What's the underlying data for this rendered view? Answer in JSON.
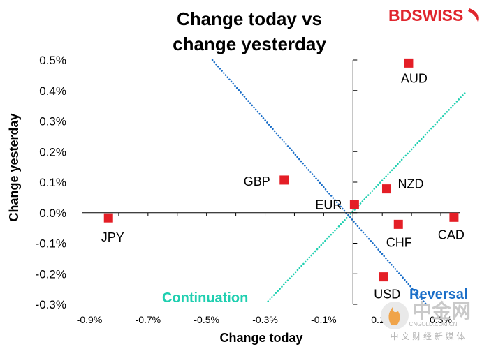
{
  "chart_data": {
    "type": "scatter",
    "title_lines": [
      "Change today vs",
      "change yesterday"
    ],
    "xlabel": "Change today",
    "ylabel": "Change yesterday",
    "xlim": [
      -0.9,
      0.35
    ],
    "ylim": [
      -0.3,
      0.5
    ],
    "x_ticks": [
      "-0.9%",
      "-0.7%",
      "-0.5%",
      "-0.3%",
      "-0.1%",
      "0.1%",
      "0.3%"
    ],
    "x_tick_values": [
      -0.9,
      -0.7,
      -0.5,
      -0.3,
      -0.1,
      0.1,
      0.3
    ],
    "y_ticks": [
      "0.5%",
      "0.4%",
      "0.3%",
      "0.2%",
      "0.1%",
      "0.0%",
      "-0.1%",
      "-0.2%",
      "-0.3%"
    ],
    "y_tick_values": [
      0.5,
      0.4,
      0.3,
      0.2,
      0.1,
      0.0,
      -0.1,
      -0.2,
      -0.3
    ],
    "points": [
      {
        "label": "AUD",
        "x": 0.19,
        "y": 0.49
      },
      {
        "label": "GBP",
        "x": -0.235,
        "y": 0.107
      },
      {
        "label": "NZD",
        "x": 0.115,
        "y": 0.078
      },
      {
        "label": "EUR",
        "x": 0.005,
        "y": 0.028
      },
      {
        "label": "JPY",
        "x": -0.835,
        "y": -0.017
      },
      {
        "label": "CAD",
        "x": 0.345,
        "y": -0.015
      },
      {
        "label": "CHF",
        "x": 0.155,
        "y": -0.038
      },
      {
        "label": "USD",
        "x": 0.105,
        "y": -0.21
      }
    ],
    "marker_color": "#e41e26",
    "reference_lines": [
      {
        "name": "Continuation",
        "x": [
          -0.29,
          0.385
        ],
        "y": [
          -0.29,
          0.395
        ],
        "color": "#1fcfb0"
      },
      {
        "name": "Reversal",
        "x": [
          -0.48,
          0.25
        ],
        "y": [
          0.5,
          -0.3
        ],
        "color": "#1a6ec8"
      }
    ],
    "annotations": [
      {
        "text": "Continuation",
        "color": "#1fcfb0"
      },
      {
        "text": "Reversal",
        "color": "#1a6ec8"
      }
    ]
  },
  "brand": {
    "bd": "BD",
    "swiss": "SWISS",
    "color": "#e0262d"
  },
  "watermark": {
    "main": "中金网",
    "sub": "CNGOLD.COM.CN",
    "tagline": "中 文 财 经 新 媒 体"
  }
}
